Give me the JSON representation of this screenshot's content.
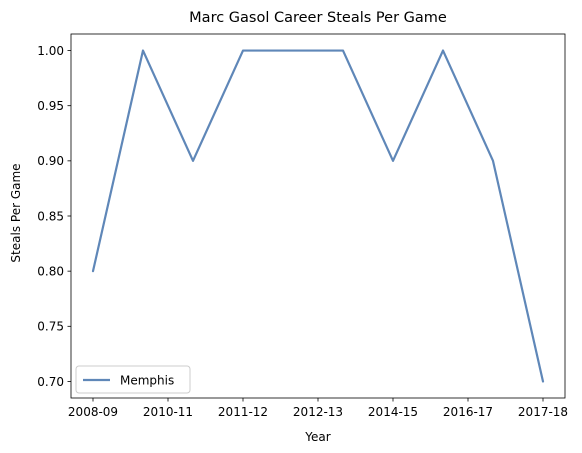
{
  "chart_data": {
    "type": "line",
    "title": "Marc Gasol Career Steals Per Game",
    "xlabel": "Year",
    "ylabel": "Steals Per Game",
    "x": [
      "2008-09",
      "2009-10",
      "2010-11",
      "2011-12",
      "2012-13",
      "2013-14",
      "2014-15",
      "2015-16",
      "2016-17",
      "2017-18"
    ],
    "x_tick_labels": [
      "2008-09",
      "2010-11",
      "2011-12",
      "2012-13",
      "2014-15",
      "2016-17",
      "2017-18"
    ],
    "y_ticks": [
      "0.70",
      "0.75",
      "0.80",
      "0.85",
      "0.90",
      "0.95",
      "1.00"
    ],
    "ylim": [
      0.685,
      1.015
    ],
    "grid": false,
    "legend_position": "lower-left",
    "series": [
      {
        "name": "Memphis",
        "color": "#5f87b8",
        "values": [
          0.8,
          1.0,
          0.9,
          1.0,
          1.0,
          1.0,
          0.9,
          1.0,
          0.9,
          0.7
        ]
      }
    ]
  }
}
